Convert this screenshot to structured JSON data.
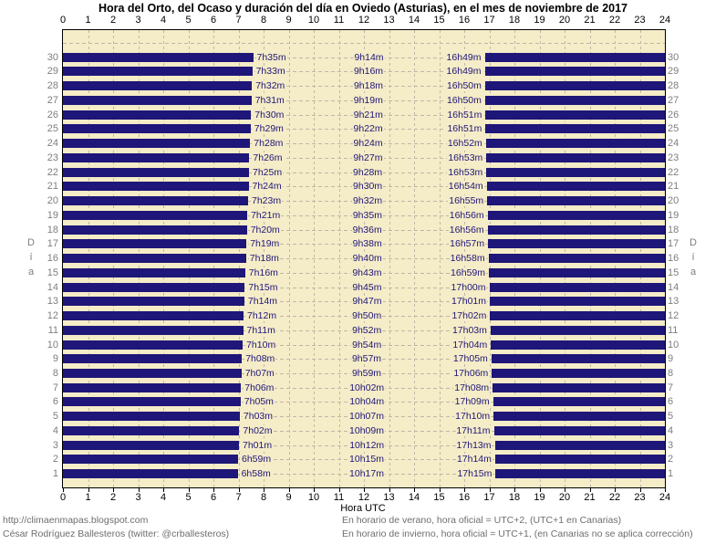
{
  "title": "Hora del Orto, del Ocaso y duración del día en Oviedo (Asturias), en el mes de noviembre de 2017",
  "axes": {
    "x_label": "Hora UTC",
    "y_label": "Día",
    "hour_ticks": [
      0,
      1,
      2,
      3,
      4,
      5,
      6,
      7,
      8,
      9,
      10,
      11,
      12,
      13,
      14,
      15,
      16,
      17,
      18,
      19,
      20,
      21,
      22,
      23,
      24
    ]
  },
  "footer": {
    "left_line1": "http://climaenmapas.blogspot.com",
    "left_line2": "César Rodríguez Ballesteros (twitter: @crballesteros)",
    "right_line1": "En horario de verano, hora oficial = UTC+2, (UTC+1 en Canarias)",
    "right_line2": "En horario de invierno, hora oficial = UTC+1, (en Canarias no se aplica corrección)"
  },
  "colors": {
    "night_bar": "#1E1678",
    "plot_background": "#F5ECC8",
    "time_label_text": "#1E1678",
    "day_number_text": "#7E7E7E",
    "gridline": "#BDB8A6",
    "axis_text": "#000000",
    "footer_text": "#6E6E6E"
  },
  "chart_data": {
    "type": "bar",
    "subtype": "daylight-gantt",
    "title": "Hora del Orto, del Ocaso y duración del día en Oviedo (Asturias), en el mes de noviembre de 2017",
    "xlabel": "Hora UTC",
    "ylabel": "Día",
    "xlim": [
      0,
      24
    ],
    "x_ticks": [
      0,
      1,
      2,
      3,
      4,
      5,
      6,
      7,
      8,
      9,
      10,
      11,
      12,
      13,
      14,
      15,
      16,
      17,
      18,
      19,
      20,
      21,
      22,
      23,
      24
    ],
    "row_slots": 31,
    "row_order": "top-to-bottom: day 30 down to day 1, empty slot for day 31 at top",
    "grid": "dashed horizontal line per day row, dashed vertical line per hour",
    "legend_position": "none",
    "days": [
      {
        "day": 30,
        "sunrise": "7h35m",
        "daylength": "9h14m",
        "sunset": "16h49m"
      },
      {
        "day": 29,
        "sunrise": "7h33m",
        "daylength": "9h16m",
        "sunset": "16h49m"
      },
      {
        "day": 28,
        "sunrise": "7h32m",
        "daylength": "9h18m",
        "sunset": "16h50m"
      },
      {
        "day": 27,
        "sunrise": "7h31m",
        "daylength": "9h19m",
        "sunset": "16h50m"
      },
      {
        "day": 26,
        "sunrise": "7h30m",
        "daylength": "9h21m",
        "sunset": "16h51m"
      },
      {
        "day": 25,
        "sunrise": "7h29m",
        "daylength": "9h22m",
        "sunset": "16h51m"
      },
      {
        "day": 24,
        "sunrise": "7h28m",
        "daylength": "9h24m",
        "sunset": "16h52m"
      },
      {
        "day": 23,
        "sunrise": "7h26m",
        "daylength": "9h27m",
        "sunset": "16h53m"
      },
      {
        "day": 22,
        "sunrise": "7h25m",
        "daylength": "9h28m",
        "sunset": "16h53m"
      },
      {
        "day": 21,
        "sunrise": "7h24m",
        "daylength": "9h30m",
        "sunset": "16h54m"
      },
      {
        "day": 20,
        "sunrise": "7h23m",
        "daylength": "9h32m",
        "sunset": "16h55m"
      },
      {
        "day": 19,
        "sunrise": "7h21m",
        "daylength": "9h35m",
        "sunset": "16h56m"
      },
      {
        "day": 18,
        "sunrise": "7h20m",
        "daylength": "9h36m",
        "sunset": "16h56m"
      },
      {
        "day": 17,
        "sunrise": "7h19m",
        "daylength": "9h38m",
        "sunset": "16h57m"
      },
      {
        "day": 16,
        "sunrise": "7h18m",
        "daylength": "9h40m",
        "sunset": "16h58m"
      },
      {
        "day": 15,
        "sunrise": "7h16m",
        "daylength": "9h43m",
        "sunset": "16h59m"
      },
      {
        "day": 14,
        "sunrise": "7h15m",
        "daylength": "9h45m",
        "sunset": "17h00m"
      },
      {
        "day": 13,
        "sunrise": "7h14m",
        "daylength": "9h47m",
        "sunset": "17h01m"
      },
      {
        "day": 12,
        "sunrise": "7h12m",
        "daylength": "9h50m",
        "sunset": "17h02m"
      },
      {
        "day": 11,
        "sunrise": "7h11m",
        "daylength": "9h52m",
        "sunset": "17h03m"
      },
      {
        "day": 10,
        "sunrise": "7h10m",
        "daylength": "9h54m",
        "sunset": "17h04m"
      },
      {
        "day": 9,
        "sunrise": "7h08m",
        "daylength": "9h57m",
        "sunset": "17h05m"
      },
      {
        "day": 8,
        "sunrise": "7h07m",
        "daylength": "9h59m",
        "sunset": "17h06m"
      },
      {
        "day": 7,
        "sunrise": "7h06m",
        "daylength": "10h02m",
        "sunset": "17h08m"
      },
      {
        "day": 6,
        "sunrise": "7h05m",
        "daylength": "10h04m",
        "sunset": "17h09m"
      },
      {
        "day": 5,
        "sunrise": "7h03m",
        "daylength": "10h07m",
        "sunset": "17h10m"
      },
      {
        "day": 4,
        "sunrise": "7h02m",
        "daylength": "10h09m",
        "sunset": "17h11m"
      },
      {
        "day": 3,
        "sunrise": "7h01m",
        "daylength": "10h12m",
        "sunset": "17h13m"
      },
      {
        "day": 2,
        "sunrise": "6h59m",
        "daylength": "10h15m",
        "sunset": "17h14m"
      },
      {
        "day": 1,
        "sunrise": "6h58m",
        "daylength": "10h17m",
        "sunset": "17h15m"
      }
    ]
  }
}
